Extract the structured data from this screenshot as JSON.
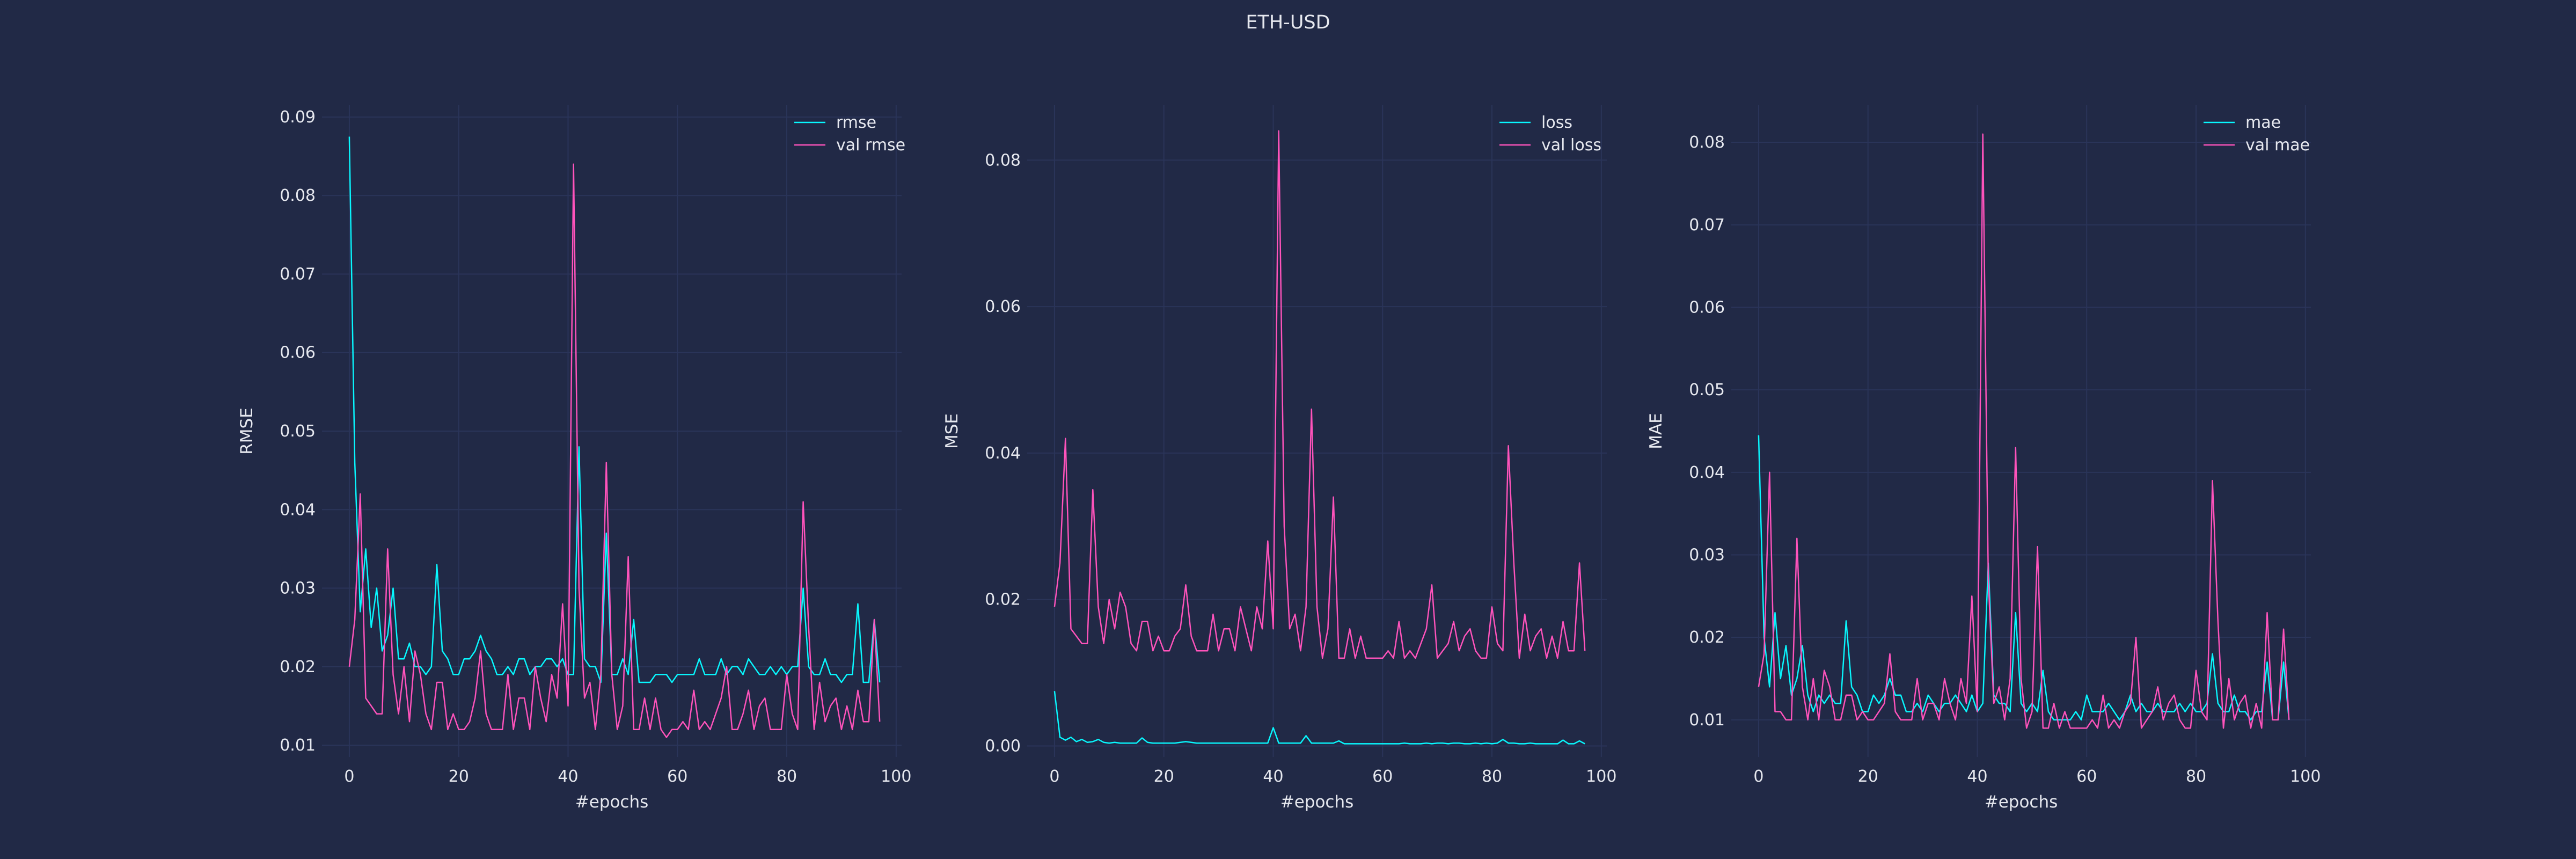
{
  "suptitle": "ETH-USD",
  "colors": {
    "background": "#212946",
    "grid": "#2A3459",
    "train": "#08F7FE",
    "val": "#FE53BB",
    "text": "#E6E8EF"
  },
  "chart_data": [
    {
      "type": "line",
      "xlabel": "#epochs",
      "ylabel": "RMSE",
      "xlim": [
        -5,
        101
      ],
      "ylim": [
        0.0085,
        0.0915
      ],
      "xticks": [
        0,
        20,
        40,
        60,
        80,
        100
      ],
      "yticks": [
        0.01,
        0.02,
        0.03,
        0.04,
        0.05,
        0.06,
        0.07,
        0.08,
        0.09
      ],
      "grid": true,
      "legend": "top-right",
      "series": [
        {
          "name": "rmse",
          "color": "#08F7FE",
          "values": [
            0.0875,
            0.046,
            0.027,
            0.035,
            0.025,
            0.03,
            0.022,
            0.024,
            0.03,
            0.021,
            0.021,
            0.023,
            0.02,
            0.02,
            0.019,
            0.02,
            0.033,
            0.022,
            0.021,
            0.019,
            0.019,
            0.021,
            0.021,
            0.022,
            0.024,
            0.022,
            0.021,
            0.019,
            0.019,
            0.02,
            0.019,
            0.021,
            0.021,
            0.019,
            0.02,
            0.02,
            0.021,
            0.021,
            0.02,
            0.021,
            0.019,
            0.019,
            0.048,
            0.021,
            0.02,
            0.02,
            0.018,
            0.037,
            0.019,
            0.019,
            0.021,
            0.019,
            0.026,
            0.018,
            0.018,
            0.018,
            0.019,
            0.019,
            0.019,
            0.018,
            0.019,
            0.019,
            0.019,
            0.019,
            0.021,
            0.019,
            0.019,
            0.019,
            0.021,
            0.019,
            0.02,
            0.02,
            0.019,
            0.021,
            0.02,
            0.019,
            0.019,
            0.02,
            0.019,
            0.02,
            0.019,
            0.02,
            0.02,
            0.03,
            0.02,
            0.019,
            0.019,
            0.021,
            0.019,
            0.019,
            0.018,
            0.019,
            0.019,
            0.028,
            0.018,
            0.018,
            0.026,
            0.018
          ]
        },
        {
          "name": "val rmse",
          "color": "#FE53BB",
          "values": [
            0.02,
            0.026,
            0.042,
            0.016,
            0.015,
            0.014,
            0.014,
            0.035,
            0.019,
            0.014,
            0.02,
            0.013,
            0.022,
            0.019,
            0.014,
            0.012,
            0.018,
            0.018,
            0.012,
            0.014,
            0.012,
            0.012,
            0.013,
            0.016,
            0.022,
            0.014,
            0.012,
            0.012,
            0.012,
            0.019,
            0.012,
            0.016,
            0.016,
            0.012,
            0.02,
            0.016,
            0.013,
            0.019,
            0.016,
            0.028,
            0.015,
            0.084,
            0.03,
            0.016,
            0.018,
            0.012,
            0.019,
            0.046,
            0.019,
            0.012,
            0.015,
            0.034,
            0.012,
            0.012,
            0.016,
            0.012,
            0.016,
            0.012,
            0.011,
            0.012,
            0.012,
            0.013,
            0.012,
            0.017,
            0.012,
            0.013,
            0.012,
            0.014,
            0.016,
            0.02,
            0.012,
            0.012,
            0.014,
            0.017,
            0.012,
            0.015,
            0.016,
            0.012,
            0.012,
            0.012,
            0.019,
            0.014,
            0.012,
            0.041,
            0.025,
            0.012,
            0.018,
            0.013,
            0.015,
            0.016,
            0.012,
            0.015,
            0.012,
            0.017,
            0.013,
            0.013,
            0.026,
            0.013
          ]
        }
      ]
    },
    {
      "type": "line",
      "xlabel": "#epochs",
      "ylabel": "MSE",
      "xlim": [
        -5,
        101
      ],
      "ylim": [
        -0.0015,
        0.0875
      ],
      "xticks": [
        0,
        20,
        40,
        60,
        80,
        100
      ],
      "yticks": [
        0.0,
        0.02,
        0.04,
        0.06,
        0.08
      ],
      "grid": true,
      "legend": "top-right",
      "series": [
        {
          "name": "loss",
          "color": "#08F7FE",
          "values": [
            0.0075,
            0.0012,
            0.0008,
            0.0012,
            0.0006,
            0.0009,
            0.0005,
            0.0006,
            0.0009,
            0.0005,
            0.0004,
            0.0005,
            0.0004,
            0.0004,
            0.0004,
            0.0004,
            0.0011,
            0.0005,
            0.0004,
            0.0004,
            0.0004,
            0.0004,
            0.0004,
            0.0005,
            0.0006,
            0.0005,
            0.0004,
            0.0004,
            0.0004,
            0.0004,
            0.0004,
            0.0004,
            0.0004,
            0.0004,
            0.0004,
            0.0004,
            0.0004,
            0.0004,
            0.0004,
            0.0004,
            0.0025,
            0.0004,
            0.0004,
            0.0004,
            0.0004,
            0.0004,
            0.0014,
            0.0004,
            0.0004,
            0.0004,
            0.0004,
            0.0004,
            0.0007,
            0.0003,
            0.0003,
            0.0003,
            0.0003,
            0.0003,
            0.0003,
            0.0003,
            0.0003,
            0.0003,
            0.0003,
            0.0003,
            0.0004,
            0.0003,
            0.0003,
            0.0003,
            0.0004,
            0.0003,
            0.0004,
            0.0004,
            0.0003,
            0.0004,
            0.0004,
            0.0003,
            0.0003,
            0.0004,
            0.0003,
            0.0004,
            0.0003,
            0.0004,
            0.0009,
            0.0004,
            0.0004,
            0.0003,
            0.0003,
            0.0004,
            0.0003,
            0.0003,
            0.0003,
            0.0003,
            0.0003,
            0.0008,
            0.0003,
            0.0003,
            0.0007,
            0.0003
          ]
        },
        {
          "name": "val loss",
          "color": "#FE53BB",
          "values": [
            0.019,
            0.025,
            0.042,
            0.016,
            0.015,
            0.014,
            0.014,
            0.035,
            0.019,
            0.014,
            0.02,
            0.016,
            0.021,
            0.019,
            0.014,
            0.013,
            0.017,
            0.017,
            0.013,
            0.015,
            0.013,
            0.013,
            0.015,
            0.016,
            0.022,
            0.015,
            0.013,
            0.013,
            0.013,
            0.018,
            0.013,
            0.016,
            0.016,
            0.013,
            0.019,
            0.016,
            0.013,
            0.019,
            0.016,
            0.028,
            0.016,
            0.084,
            0.03,
            0.016,
            0.018,
            0.013,
            0.019,
            0.046,
            0.019,
            0.012,
            0.016,
            0.034,
            0.012,
            0.012,
            0.016,
            0.012,
            0.015,
            0.012,
            0.012,
            0.012,
            0.012,
            0.013,
            0.012,
            0.017,
            0.012,
            0.013,
            0.012,
            0.014,
            0.016,
            0.022,
            0.012,
            0.013,
            0.014,
            0.017,
            0.013,
            0.015,
            0.016,
            0.013,
            0.012,
            0.012,
            0.019,
            0.014,
            0.013,
            0.041,
            0.025,
            0.012,
            0.018,
            0.013,
            0.015,
            0.016,
            0.012,
            0.015,
            0.012,
            0.017,
            0.013,
            0.013,
            0.025,
            0.013
          ]
        }
      ]
    },
    {
      "type": "line",
      "xlabel": "#epochs",
      "ylabel": "MAE",
      "xlim": [
        -5,
        101
      ],
      "ylim": [
        0.0055,
        0.0845
      ],
      "xticks": [
        0,
        20,
        40,
        60,
        80,
        100
      ],
      "yticks": [
        0.01,
        0.02,
        0.03,
        0.04,
        0.05,
        0.06,
        0.07,
        0.08
      ],
      "grid": true,
      "legend": "top-right",
      "series": [
        {
          "name": "mae",
          "color": "#08F7FE",
          "values": [
            0.0445,
            0.02,
            0.014,
            0.023,
            0.015,
            0.019,
            0.013,
            0.015,
            0.019,
            0.013,
            0.011,
            0.013,
            0.012,
            0.013,
            0.012,
            0.012,
            0.022,
            0.014,
            0.013,
            0.011,
            0.011,
            0.013,
            0.012,
            0.013,
            0.015,
            0.013,
            0.013,
            0.011,
            0.011,
            0.012,
            0.011,
            0.013,
            0.012,
            0.011,
            0.012,
            0.012,
            0.013,
            0.012,
            0.011,
            0.013,
            0.011,
            0.012,
            0.029,
            0.013,
            0.012,
            0.012,
            0.011,
            0.023,
            0.012,
            0.011,
            0.012,
            0.011,
            0.016,
            0.011,
            0.01,
            0.01,
            0.01,
            0.01,
            0.011,
            0.01,
            0.013,
            0.011,
            0.011,
            0.011,
            0.012,
            0.011,
            0.01,
            0.011,
            0.013,
            0.011,
            0.012,
            0.011,
            0.011,
            0.012,
            0.011,
            0.011,
            0.011,
            0.012,
            0.011,
            0.012,
            0.011,
            0.011,
            0.012,
            0.018,
            0.012,
            0.011,
            0.011,
            0.013,
            0.011,
            0.011,
            0.01,
            0.011,
            0.011,
            0.017,
            0.01,
            0.01,
            0.017,
            0.01
          ]
        },
        {
          "name": "val mae",
          "color": "#FE53BB",
          "values": [
            0.014,
            0.018,
            0.04,
            0.011,
            0.011,
            0.01,
            0.01,
            0.032,
            0.014,
            0.01,
            0.015,
            0.01,
            0.016,
            0.014,
            0.01,
            0.01,
            0.013,
            0.013,
            0.01,
            0.011,
            0.01,
            0.01,
            0.011,
            0.012,
            0.018,
            0.011,
            0.01,
            0.01,
            0.01,
            0.015,
            0.01,
            0.012,
            0.012,
            0.01,
            0.015,
            0.012,
            0.01,
            0.015,
            0.012,
            0.025,
            0.011,
            0.081,
            0.027,
            0.012,
            0.014,
            0.01,
            0.015,
            0.043,
            0.015,
            0.009,
            0.011,
            0.031,
            0.009,
            0.009,
            0.012,
            0.009,
            0.011,
            0.009,
            0.009,
            0.009,
            0.009,
            0.01,
            0.009,
            0.013,
            0.009,
            0.01,
            0.009,
            0.011,
            0.012,
            0.02,
            0.009,
            0.01,
            0.011,
            0.014,
            0.01,
            0.012,
            0.013,
            0.01,
            0.009,
            0.009,
            0.016,
            0.011,
            0.01,
            0.039,
            0.022,
            0.009,
            0.015,
            0.01,
            0.012,
            0.013,
            0.009,
            0.012,
            0.009,
            0.023,
            0.01,
            0.01,
            0.021,
            0.01
          ]
        }
      ]
    }
  ]
}
